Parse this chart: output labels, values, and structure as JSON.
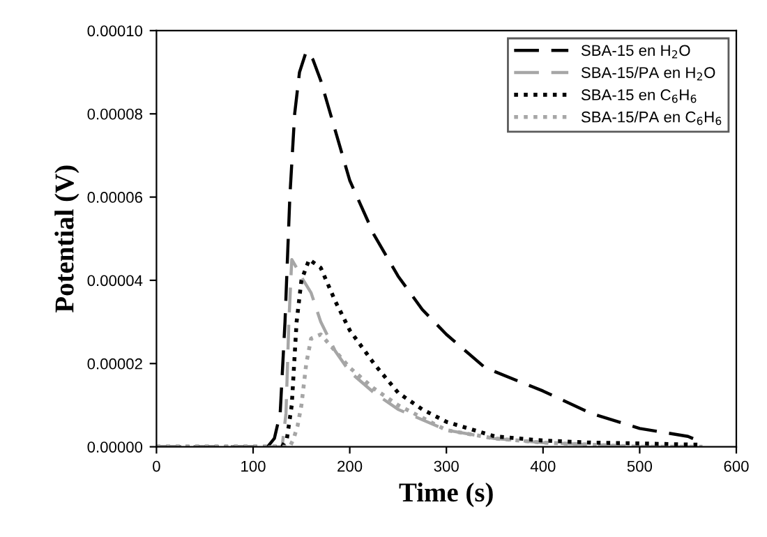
{
  "chart_data": {
    "type": "line",
    "xlabel": "Time (s)",
    "ylabel": "Potential (V)",
    "xlim": [
      0,
      600
    ],
    "xticks": [
      0,
      100,
      200,
      300,
      400,
      500,
      600
    ],
    "ylim": [
      0,
      0.0001
    ],
    "yticks": [
      {
        "value": 0,
        "label": "0.00000"
      },
      {
        "value": 2e-05,
        "label": "0.00002"
      },
      {
        "value": 4e-05,
        "label": "0.00004"
      },
      {
        "value": 6e-05,
        "label": "0.00006"
      },
      {
        "value": 8e-05,
        "label": "0.00008"
      },
      {
        "value": 0.0001,
        "label": "0.00010"
      }
    ],
    "grid": false,
    "legend": "top right",
    "series": [
      {
        "name": "SBA-15 en H$_{2}$O",
        "color": "#000000",
        "line_style": "dashed",
        "x": [
          0,
          50,
          100,
          115,
          122,
          128,
          133,
          138,
          143,
          148,
          155,
          162,
          170,
          185,
          200,
          225,
          250,
          275,
          300,
          340,
          400,
          450,
          500,
          550,
          565
        ],
        "values": [
          0,
          0,
          0,
          0,
          2e-06,
          8e-06,
          3e-05,
          6e-05,
          8e-05,
          9e-05,
          9.5e-05,
          9.3e-05,
          8.8e-05,
          7.6e-05,
          6.4e-05,
          5.1e-05,
          4.1e-05,
          3.3e-05,
          2.7e-05,
          1.9e-05,
          1.34e-05,
          8e-06,
          4.4e-06,
          2.5e-06,
          1e-06
        ]
      },
      {
        "name": "SBA-15/PA en H$_{2}$O",
        "color": "#a6a6a6",
        "line_style": "dashed",
        "x": [
          0,
          50,
          100,
          130,
          134,
          137,
          140,
          145,
          152,
          160,
          170,
          185,
          200,
          225,
          250,
          300,
          350,
          400,
          500,
          565
        ],
        "values": [
          0,
          0,
          0,
          0,
          8e-06,
          3e-05,
          4.5e-05,
          4.3e-05,
          4e-05,
          3.7e-05,
          3e-05,
          2.3e-05,
          1.8e-05,
          1.3e-05,
          9e-06,
          4e-06,
          2e-06,
          1e-06,
          0,
          0
        ]
      },
      {
        "name": "SBA-15 en C$_{6}$H$_{6}$",
        "color": "#000000",
        "line_style": "dotted",
        "x": [
          0,
          50,
          100,
          130,
          135,
          140,
          145,
          150,
          158,
          170,
          185,
          200,
          225,
          250,
          275,
          300,
          350,
          400,
          450,
          500,
          560
        ],
        "values": [
          0,
          0,
          0,
          0,
          2e-06,
          1e-05,
          3e-05,
          4e-05,
          4.5e-05,
          4.3e-05,
          3.5e-05,
          2.8e-05,
          2e-05,
          1.3e-05,
          9e-06,
          6e-06,
          2.5e-06,
          1.5e-06,
          1e-06,
          8e-07,
          5e-07
        ]
      },
      {
        "name": "SBA-15/PA en C$_{6}$H$_{6}$",
        "color": "#a6a6a6",
        "line_style": "dotted",
        "x": [
          0,
          50,
          100,
          138,
          142,
          146,
          150,
          155,
          160,
          170,
          185,
          200,
          225,
          250,
          300,
          350,
          400,
          500,
          565
        ],
        "values": [
          0,
          0,
          0,
          0,
          2e-06,
          5e-06,
          1e-05,
          2e-05,
          2.6e-05,
          2.7e-05,
          2.3e-05,
          1.9e-05,
          1.4e-05,
          1e-05,
          4e-06,
          2e-06,
          1e-06,
          0,
          0
        ]
      }
    ]
  }
}
